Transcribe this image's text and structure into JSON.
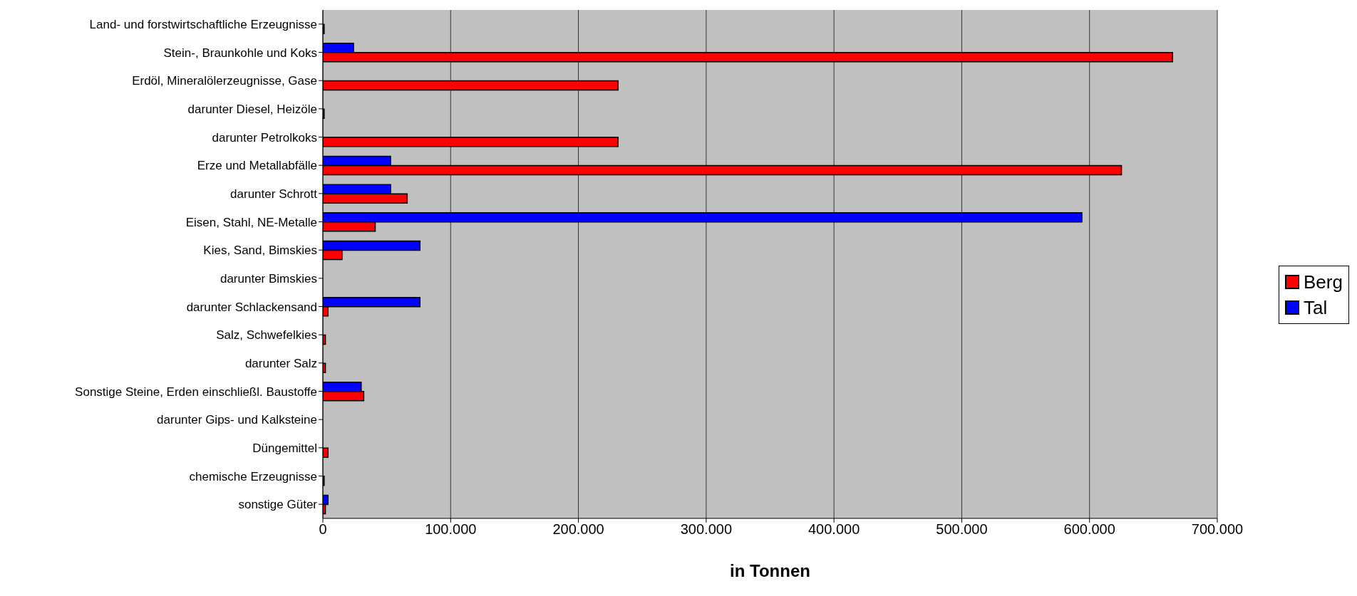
{
  "chart_data": {
    "type": "bar",
    "orientation": "horizontal",
    "xlabel": "in Tonnen",
    "categories": [
      "Land- und forstwirtschaftliche Erzeugnisse",
      "Stein-, Braunkohle und Koks",
      "Erdöl, Mineralölerzeugnisse, Gase",
      "darunter Diesel, Heizöle",
      "darunter Petrolkoks",
      "Erze und Metallabfälle",
      "darunter Schrott",
      "Eisen, Stahl, NE-Metalle",
      "Kies, Sand, Bimskies",
      "darunter Bimskies",
      "darunter Schlackensand",
      "Salz, Schwefelkies",
      "darunter Salz",
      "Sonstige Steine, Erden einschließl. Baustoffe",
      "darunter Gips- und Kalksteine",
      "Düngemittel",
      "chemische Erzeugnisse",
      "sonstige Güter"
    ],
    "series": [
      {
        "name": "Berg",
        "color": "#ff0000",
        "values": [
          1000,
          665000,
          231000,
          1000,
          231000,
          625000,
          66000,
          41000,
          15000,
          0,
          4000,
          2000,
          2000,
          32000,
          0,
          4000,
          1000,
          2000
        ]
      },
      {
        "name": "Tal",
        "color": "#0000ff",
        "values": [
          0,
          24000,
          0,
          0,
          0,
          53000,
          53000,
          594000,
          76000,
          0,
          76000,
          0,
          0,
          30000,
          0,
          0,
          0,
          4000
        ]
      }
    ],
    "xlim": [
      0,
      700000
    ],
    "xticks": [
      {
        "value": 0,
        "label": "0"
      },
      {
        "value": 100000,
        "label": "100.000"
      },
      {
        "value": 200000,
        "label": "200.000"
      },
      {
        "value": 300000,
        "label": "300.000"
      },
      {
        "value": 400000,
        "label": "400.000"
      },
      {
        "value": 500000,
        "label": "500.000"
      },
      {
        "value": 600000,
        "label": "600.000"
      },
      {
        "value": 700000,
        "label": "700.000"
      }
    ],
    "grid": "x",
    "legend": "right"
  }
}
